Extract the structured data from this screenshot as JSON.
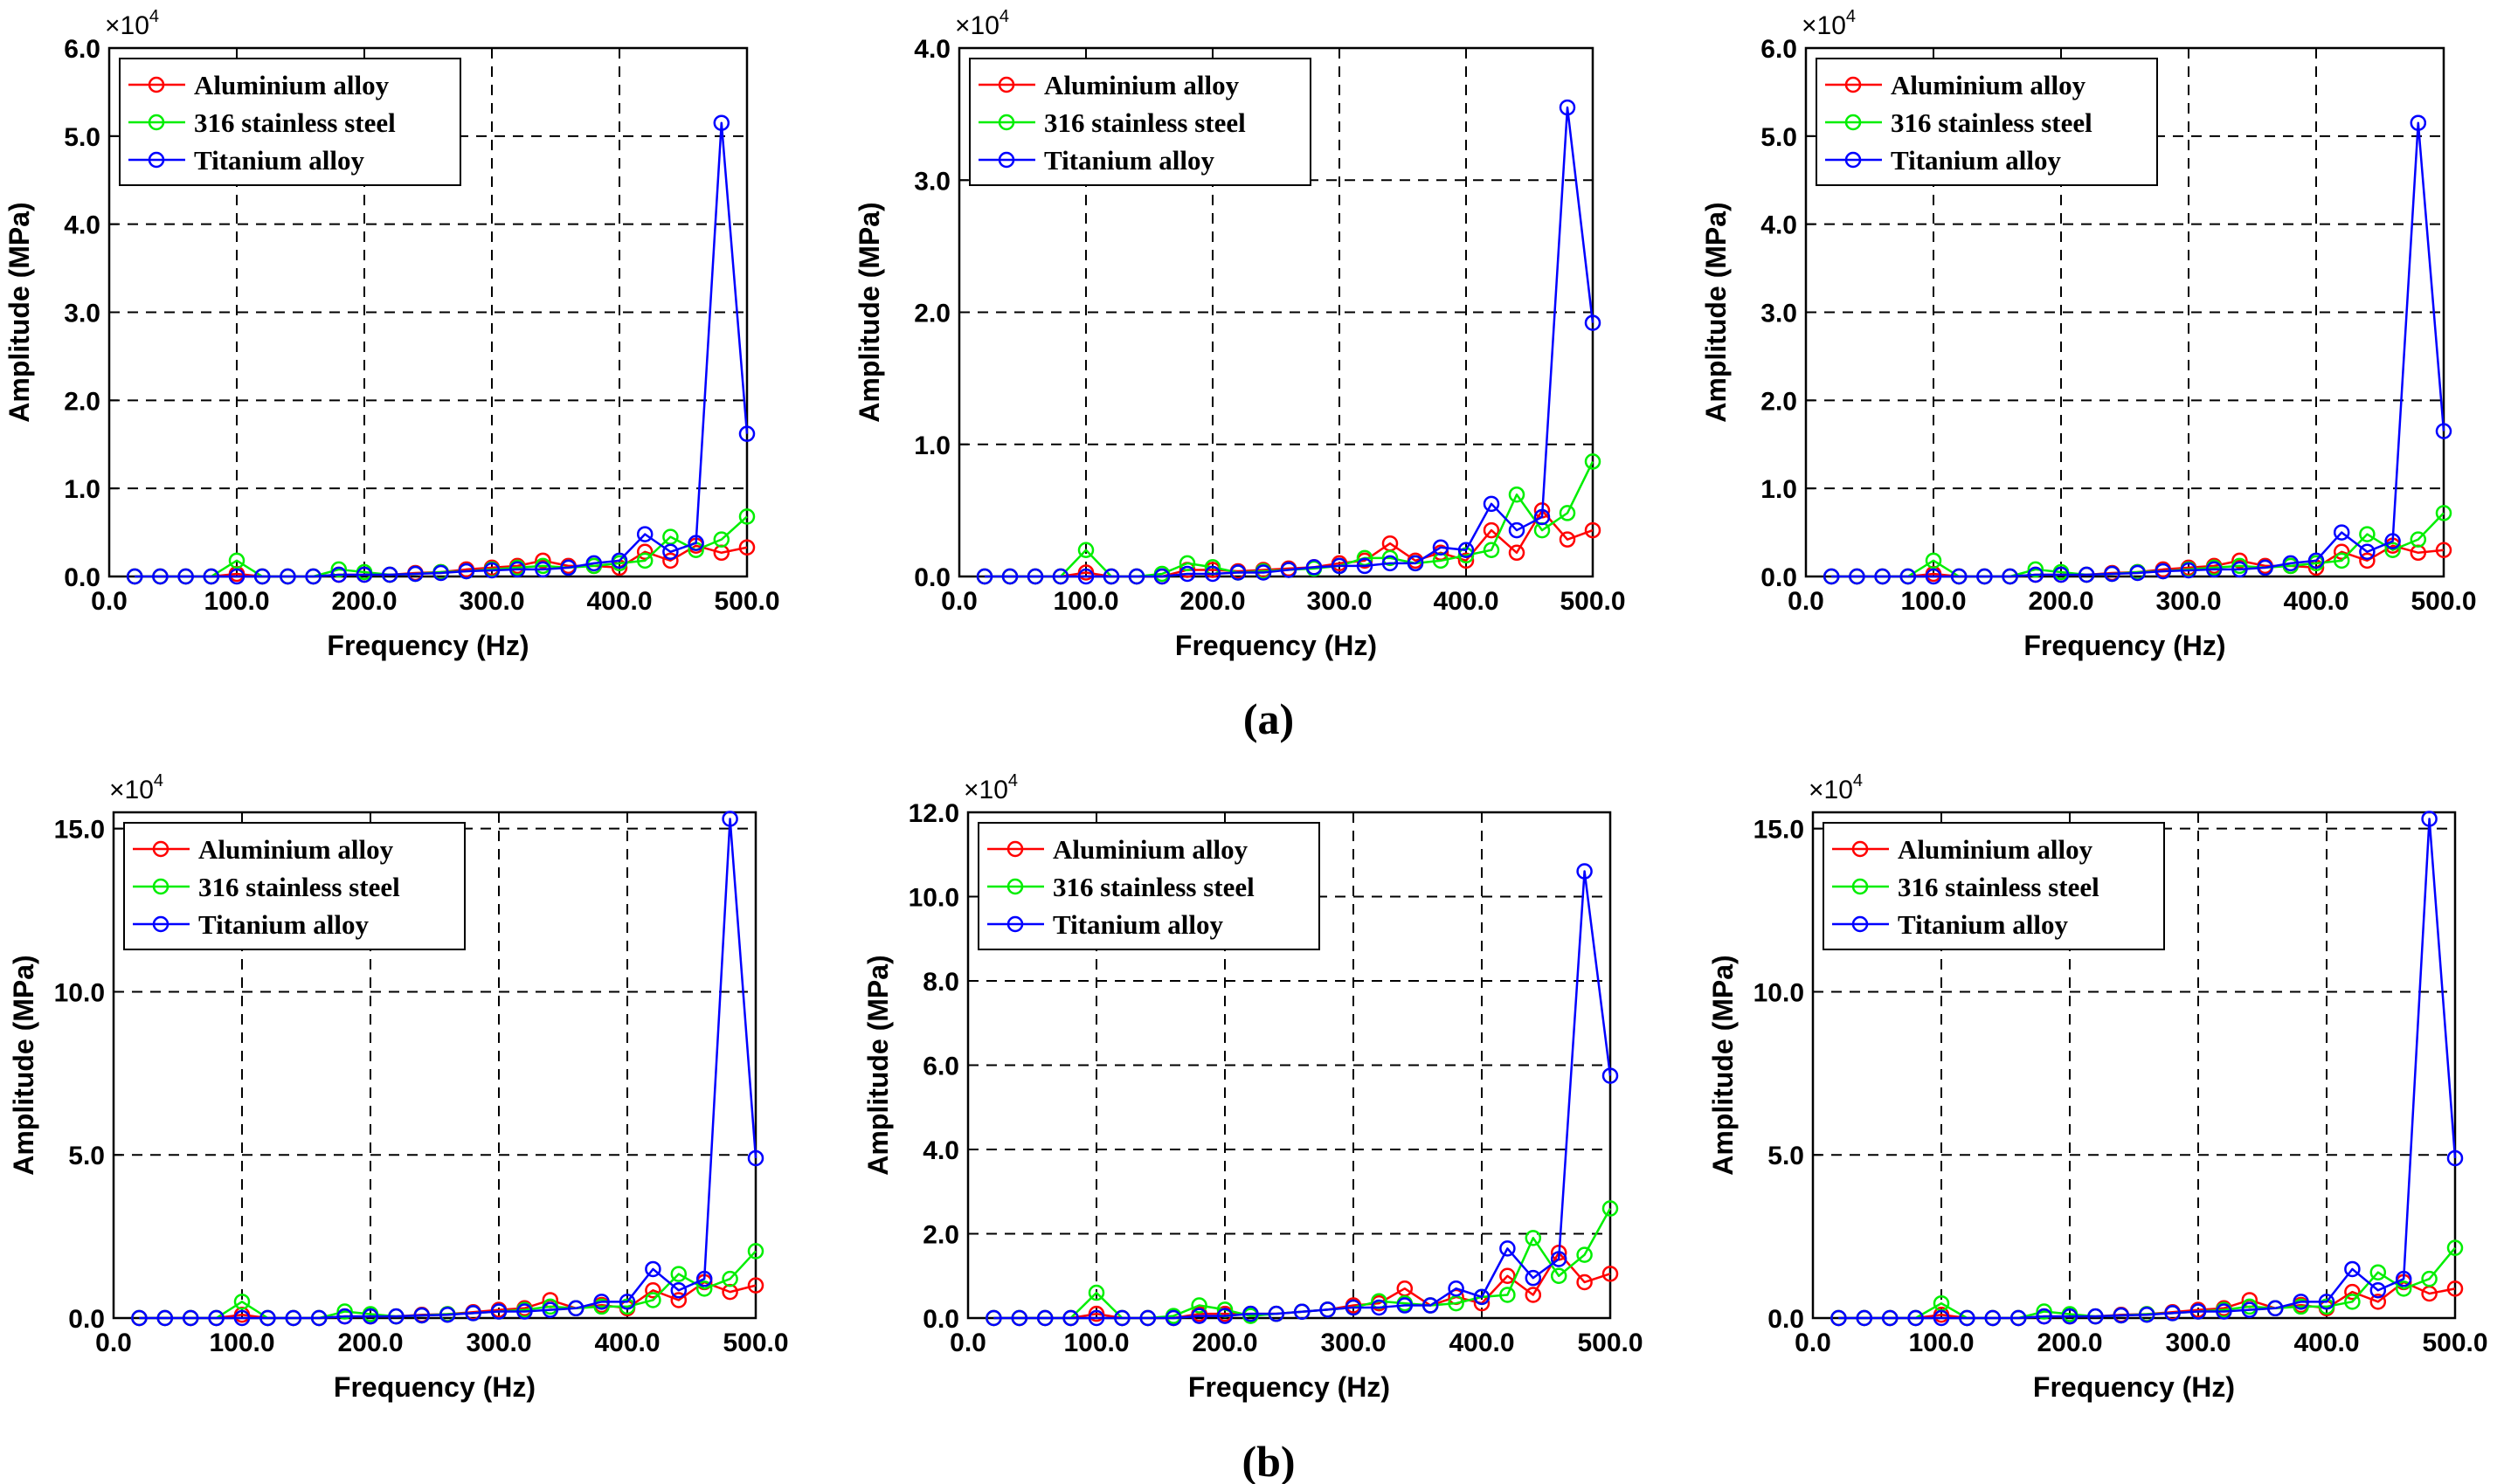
{
  "figure": {
    "panel_labels": [
      "(a)",
      "(b)"
    ],
    "multiplier": {
      "base": "×10",
      "exponent": "4"
    }
  },
  "chart_data": [
    {
      "type": "line",
      "id": "a1",
      "xlabel": "Frequency (Hz)",
      "ylabel": "Amplitude (MPa)",
      "xlim": [
        0,
        500
      ],
      "ylim": [
        0,
        6
      ],
      "xticks": [
        "0.0",
        "100.0",
        "200.0",
        "300.0",
        "400.0",
        "500.0"
      ],
      "xtick_values": [
        0,
        100,
        200,
        300,
        400,
        500
      ],
      "yticks": [
        "0.0",
        "1.0",
        "2.0",
        "3.0",
        "4.0",
        "5.0",
        "6.0"
      ],
      "ytick_values": [
        0,
        1,
        2,
        3,
        4,
        5,
        6
      ],
      "grid": true,
      "legend_position": "top-left",
      "x": [
        20,
        40,
        60,
        80,
        100,
        120,
        140,
        160,
        180,
        200,
        220,
        240,
        260,
        280,
        300,
        320,
        340,
        360,
        380,
        400,
        420,
        440,
        460,
        480,
        500
      ],
      "series": [
        {
          "name": "Aluminium alloy",
          "color": "#ff0000",
          "values": [
            0,
            0,
            0,
            0,
            0.03,
            0,
            0,
            0,
            0.02,
            0.02,
            0.02,
            0.04,
            0.05,
            0.08,
            0.1,
            0.12,
            0.18,
            0.12,
            0.12,
            0.1,
            0.28,
            0.18,
            0.35,
            0.27,
            0.33
          ]
        },
        {
          "name": "316 stainless steel",
          "color": "#00ee00",
          "values": [
            0,
            0,
            0,
            0,
            0.18,
            0,
            0,
            0,
            0.08,
            0.05,
            0.02,
            0.03,
            0.05,
            0.06,
            0.08,
            0.1,
            0.12,
            0.1,
            0.12,
            0.15,
            0.18,
            0.45,
            0.3,
            0.42,
            0.68
          ]
        },
        {
          "name": "Titanium alloy",
          "color": "#0000ff",
          "values": [
            0,
            0,
            0,
            0,
            0,
            0,
            0,
            0,
            0.02,
            0.02,
            0.02,
            0.03,
            0.04,
            0.06,
            0.07,
            0.08,
            0.08,
            0.1,
            0.15,
            0.18,
            0.48,
            0.28,
            0.38,
            5.15,
            1.62
          ]
        }
      ]
    },
    {
      "type": "line",
      "id": "a2",
      "xlabel": "Frequency (Hz)",
      "ylabel": "Amplitude (MPa)",
      "xlim": [
        0,
        500
      ],
      "ylim": [
        0,
        4
      ],
      "xticks": [
        "0.0",
        "100.0",
        "200.0",
        "300.0",
        "400.0",
        "500.0"
      ],
      "xtick_values": [
        0,
        100,
        200,
        300,
        400,
        500
      ],
      "yticks": [
        "0.0",
        "1.0",
        "2.0",
        "3.0",
        "4.0"
      ],
      "ytick_values": [
        0,
        1,
        2,
        3,
        4
      ],
      "grid": true,
      "legend_position": "top-left",
      "x": [
        20,
        40,
        60,
        80,
        100,
        120,
        140,
        160,
        180,
        200,
        220,
        240,
        260,
        280,
        300,
        320,
        340,
        360,
        380,
        400,
        420,
        440,
        460,
        480,
        500
      ],
      "series": [
        {
          "name": "Aluminium alloy",
          "color": "#ff0000",
          "values": [
            0,
            0,
            0,
            0,
            0.03,
            0,
            0,
            0,
            0.05,
            0.05,
            0.04,
            0.05,
            0.06,
            0.07,
            0.1,
            0.12,
            0.25,
            0.12,
            0.18,
            0.12,
            0.35,
            0.18,
            0.5,
            0.28,
            0.35
          ]
        },
        {
          "name": "316 stainless steel",
          "color": "#00ee00",
          "values": [
            0,
            0,
            0,
            0,
            0.2,
            0,
            0,
            0.02,
            0.1,
            0.07,
            0.03,
            0.04,
            0.05,
            0.06,
            0.08,
            0.14,
            0.14,
            0.1,
            0.12,
            0.16,
            0.2,
            0.62,
            0.35,
            0.48,
            0.87
          ]
        },
        {
          "name": "Titanium alloy",
          "color": "#0000ff",
          "values": [
            0,
            0,
            0,
            0,
            0,
            0,
            0,
            0,
            0.02,
            0.02,
            0.03,
            0.03,
            0.05,
            0.07,
            0.08,
            0.08,
            0.1,
            0.1,
            0.22,
            0.2,
            0.55,
            0.35,
            0.45,
            3.55,
            1.92
          ]
        }
      ]
    },
    {
      "type": "line",
      "id": "a3",
      "xlabel": "Frequency (Hz)",
      "ylabel": "Amplitude (MPa)",
      "xlim": [
        0,
        500
      ],
      "ylim": [
        0,
        6
      ],
      "xticks": [
        "0.0",
        "100.0",
        "200.0",
        "300.0",
        "400.0",
        "500.0"
      ],
      "xtick_values": [
        0,
        100,
        200,
        300,
        400,
        500
      ],
      "yticks": [
        "0.0",
        "1.0",
        "2.0",
        "3.0",
        "4.0",
        "5.0",
        "6.0"
      ],
      "ytick_values": [
        0,
        1,
        2,
        3,
        4,
        5,
        6
      ],
      "grid": true,
      "legend_position": "top-left",
      "x": [
        20,
        40,
        60,
        80,
        100,
        120,
        140,
        160,
        180,
        200,
        220,
        240,
        260,
        280,
        300,
        320,
        340,
        360,
        380,
        400,
        420,
        440,
        460,
        480,
        500
      ],
      "series": [
        {
          "name": "Aluminium alloy",
          "color": "#ff0000",
          "values": [
            0,
            0,
            0,
            0,
            0.03,
            0,
            0,
            0,
            0.02,
            0.02,
            0.02,
            0.04,
            0.05,
            0.08,
            0.1,
            0.12,
            0.18,
            0.12,
            0.12,
            0.1,
            0.28,
            0.18,
            0.35,
            0.27,
            0.3
          ]
        },
        {
          "name": "316 stainless steel",
          "color": "#00ee00",
          "values": [
            0,
            0,
            0,
            0,
            0.18,
            0,
            0,
            0,
            0.08,
            0.05,
            0.02,
            0.03,
            0.05,
            0.06,
            0.08,
            0.1,
            0.12,
            0.1,
            0.12,
            0.15,
            0.18,
            0.48,
            0.3,
            0.42,
            0.72
          ]
        },
        {
          "name": "Titanium alloy",
          "color": "#0000ff",
          "values": [
            0,
            0,
            0,
            0,
            0,
            0,
            0,
            0,
            0.02,
            0.02,
            0.02,
            0.03,
            0.04,
            0.06,
            0.07,
            0.08,
            0.08,
            0.1,
            0.15,
            0.18,
            0.5,
            0.28,
            0.4,
            5.15,
            1.65
          ]
        }
      ]
    },
    {
      "type": "line",
      "id": "b1",
      "xlabel": "Frequency (Hz)",
      "ylabel": "Amplitude (MPa)",
      "xlim": [
        0,
        500
      ],
      "ylim": [
        0,
        15.5
      ],
      "xticks": [
        "0.0",
        "100.0",
        "200.0",
        "300.0",
        "400.0",
        "500.0"
      ],
      "xtick_values": [
        0,
        100,
        200,
        300,
        400,
        500
      ],
      "yticks": [
        "0.0",
        "5.0",
        "10.0",
        "15.0"
      ],
      "ytick_values": [
        0,
        5,
        10,
        15
      ],
      "grid": true,
      "legend_position": "top-left",
      "x": [
        20,
        40,
        60,
        80,
        100,
        120,
        140,
        160,
        180,
        200,
        220,
        240,
        260,
        280,
        300,
        320,
        340,
        360,
        380,
        400,
        420,
        440,
        460,
        480,
        500
      ],
      "series": [
        {
          "name": "Aluminium alloy",
          "color": "#ff0000",
          "values": [
            0,
            0,
            0,
            0,
            0.1,
            0,
            0,
            0,
            0.05,
            0.05,
            0.05,
            0.1,
            0.12,
            0.18,
            0.25,
            0.3,
            0.55,
            0.3,
            0.4,
            0.3,
            0.85,
            0.55,
            1.1,
            0.8,
            1.0
          ]
        },
        {
          "name": "316 stainless steel",
          "color": "#00ee00",
          "values": [
            0,
            0,
            0,
            0,
            0.5,
            0,
            0,
            0,
            0.2,
            0.12,
            0.05,
            0.08,
            0.12,
            0.15,
            0.2,
            0.25,
            0.35,
            0.3,
            0.35,
            0.35,
            0.55,
            1.35,
            0.9,
            1.2,
            2.05
          ]
        },
        {
          "name": "Titanium alloy",
          "color": "#0000ff",
          "values": [
            0,
            0,
            0,
            0,
            0,
            0,
            0,
            0,
            0.05,
            0.05,
            0.05,
            0.08,
            0.1,
            0.15,
            0.2,
            0.2,
            0.25,
            0.3,
            0.5,
            0.5,
            1.5,
            0.85,
            1.2,
            15.3,
            4.9
          ]
        }
      ]
    },
    {
      "type": "line",
      "id": "b2",
      "xlabel": "Frequency (Hz)",
      "ylabel": "Amplitude (MPa)",
      "xlim": [
        0,
        500
      ],
      "ylim": [
        0,
        12
      ],
      "xticks": [
        "0.0",
        "100.0",
        "200.0",
        "300.0",
        "400.0",
        "500.0"
      ],
      "xtick_values": [
        0,
        100,
        200,
        300,
        400,
        500
      ],
      "yticks": [
        "0.0",
        "2.0",
        "4.0",
        "6.0",
        "8.0",
        "10.0",
        "12.0"
      ],
      "ytick_values": [
        0,
        2,
        4,
        6,
        8,
        10,
        12
      ],
      "grid": true,
      "legend_position": "top-left",
      "x": [
        20,
        40,
        60,
        80,
        100,
        120,
        140,
        160,
        180,
        200,
        220,
        240,
        260,
        280,
        300,
        320,
        340,
        360,
        380,
        400,
        420,
        440,
        460,
        480,
        500
      ],
      "series": [
        {
          "name": "Aluminium alloy",
          "color": "#ff0000",
          "values": [
            0,
            0,
            0,
            0,
            0.1,
            0,
            0,
            0,
            0.1,
            0.1,
            0.1,
            0.1,
            0.15,
            0.2,
            0.3,
            0.35,
            0.7,
            0.3,
            0.5,
            0.35,
            1.0,
            0.55,
            1.55,
            0.85,
            1.05
          ]
        },
        {
          "name": "316 stainless steel",
          "color": "#00ee00",
          "values": [
            0,
            0,
            0,
            0,
            0.6,
            0,
            0,
            0.05,
            0.3,
            0.2,
            0.05,
            0.1,
            0.15,
            0.2,
            0.25,
            0.4,
            0.35,
            0.3,
            0.35,
            0.5,
            0.55,
            1.9,
            1.0,
            1.5,
            2.6
          ]
        },
        {
          "name": "Titanium alloy",
          "color": "#0000ff",
          "values": [
            0,
            0,
            0,
            0,
            0,
            0,
            0,
            0,
            0.05,
            0.05,
            0.1,
            0.1,
            0.15,
            0.2,
            0.25,
            0.25,
            0.3,
            0.3,
            0.7,
            0.5,
            1.65,
            0.95,
            1.4,
            10.6,
            5.75
          ]
        }
      ]
    },
    {
      "type": "line",
      "id": "b3",
      "xlabel": "Frequency (Hz)",
      "ylabel": "Amplitude (MPa)",
      "xlim": [
        0,
        500
      ],
      "ylim": [
        0,
        15.5
      ],
      "xticks": [
        "0.0",
        "100.0",
        "200.0",
        "300.0",
        "400.0",
        "500.0"
      ],
      "xtick_values": [
        0,
        100,
        200,
        300,
        400,
        500
      ],
      "yticks": [
        "0.0",
        "5.0",
        "10.0",
        "15.0"
      ],
      "ytick_values": [
        0,
        5,
        10,
        15
      ],
      "grid": true,
      "legend_position": "top-left",
      "x": [
        20,
        40,
        60,
        80,
        100,
        120,
        140,
        160,
        180,
        200,
        220,
        240,
        260,
        280,
        300,
        320,
        340,
        360,
        380,
        400,
        420,
        440,
        460,
        480,
        500
      ],
      "series": [
        {
          "name": "Aluminium alloy",
          "color": "#ff0000",
          "values": [
            0,
            0,
            0,
            0,
            0.1,
            0,
            0,
            0,
            0.05,
            0.05,
            0.05,
            0.1,
            0.12,
            0.18,
            0.25,
            0.3,
            0.55,
            0.3,
            0.4,
            0.3,
            0.8,
            0.5,
            1.1,
            0.75,
            0.9
          ]
        },
        {
          "name": "316 stainless steel",
          "color": "#00ee00",
          "values": [
            0,
            0,
            0,
            0,
            0.45,
            0,
            0,
            0,
            0.2,
            0.12,
            0.05,
            0.08,
            0.12,
            0.15,
            0.2,
            0.25,
            0.35,
            0.3,
            0.35,
            0.35,
            0.5,
            1.4,
            0.9,
            1.2,
            2.15
          ]
        },
        {
          "name": "Titanium alloy",
          "color": "#0000ff",
          "values": [
            0,
            0,
            0,
            0,
            0,
            0,
            0,
            0,
            0.05,
            0.05,
            0.05,
            0.08,
            0.1,
            0.15,
            0.2,
            0.2,
            0.25,
            0.3,
            0.5,
            0.5,
            1.5,
            0.85,
            1.2,
            15.3,
            4.9
          ]
        }
      ]
    }
  ]
}
